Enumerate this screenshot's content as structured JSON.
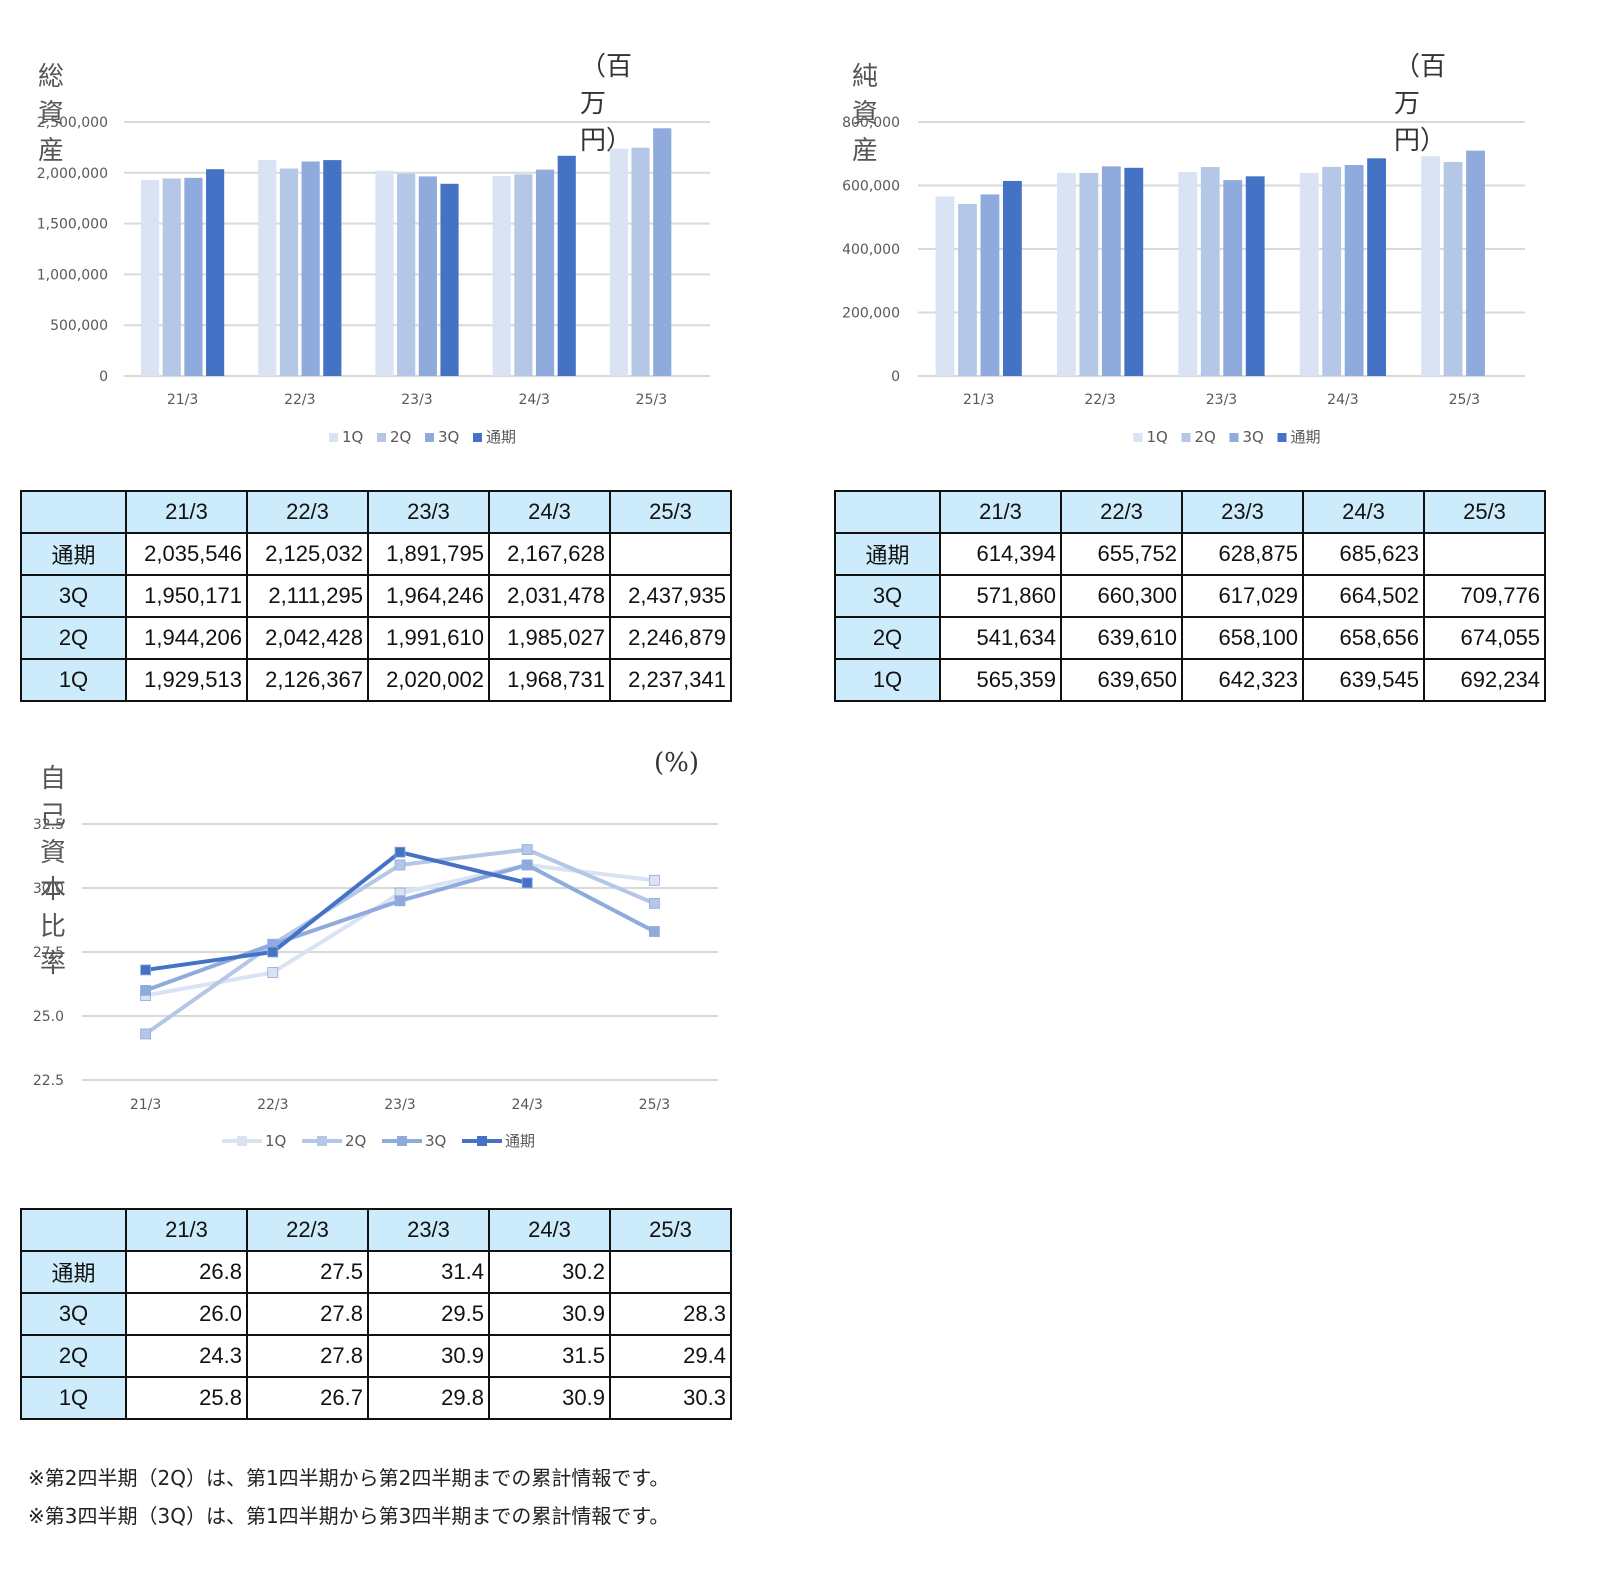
{
  "charts": [
    {
      "key": "total_assets",
      "title": "総資産",
      "unit": "（百万円）",
      "type": "bar",
      "categories": [
        "21/3",
        "22/3",
        "23/3",
        "24/3",
        "25/3"
      ],
      "yticks": [
        "2,500,000",
        "2,000,000",
        "1,500,000",
        "1,000,000",
        "500,000",
        "0"
      ],
      "ylim": [
        0,
        2500000
      ],
      "series": [
        {
          "name": "1Q",
          "color": "#dae3f3",
          "values": [
            1929513,
            2126367,
            2020002,
            1968731,
            2237341
          ]
        },
        {
          "name": "2Q",
          "color": "#b4c7e7",
          "values": [
            1944206,
            2042428,
            1991610,
            1985027,
            2246879
          ]
        },
        {
          "name": "3Q",
          "color": "#8faadc",
          "values": [
            1950171,
            2111295,
            1964246,
            2031478,
            2437935
          ]
        },
        {
          "name": "通期",
          "color": "#4472c4",
          "values": [
            2035546,
            2125032,
            1891795,
            2167628,
            null
          ]
        }
      ]
    },
    {
      "key": "net_assets",
      "title": "純資産",
      "unit": "（百万円）",
      "type": "bar",
      "categories": [
        "21/3",
        "22/3",
        "23/3",
        "24/3",
        "25/3"
      ],
      "yticks": [
        "800,000",
        "600,000",
        "400,000",
        "200,000",
        "0"
      ],
      "ylim": [
        0,
        800000
      ],
      "series": [
        {
          "name": "1Q",
          "color": "#dae3f3",
          "values": [
            565359,
            639650,
            642323,
            639545,
            692234
          ]
        },
        {
          "name": "2Q",
          "color": "#b4c7e7",
          "values": [
            541634,
            639610,
            658100,
            658656,
            674055
          ]
        },
        {
          "name": "3Q",
          "color": "#8faadc",
          "values": [
            571860,
            660300,
            617029,
            664502,
            709776
          ]
        },
        {
          "name": "通期",
          "color": "#4472c4",
          "values": [
            614394,
            655752,
            628875,
            685623,
            null
          ]
        }
      ]
    },
    {
      "key": "equity_ratio",
      "title": "自己資本比率",
      "unit": "(%)",
      "type": "line",
      "categories": [
        "21/3",
        "22/3",
        "23/3",
        "24/3",
        "25/3"
      ],
      "yticks": [
        "32.5",
        "30.0",
        "27.5",
        "25.0",
        "22.5"
      ],
      "ylim": [
        22.5,
        32.5
      ],
      "series": [
        {
          "name": "1Q",
          "color": "#dae3f3",
          "values": [
            25.8,
            26.7,
            29.8,
            30.9,
            30.3
          ]
        },
        {
          "name": "2Q",
          "color": "#b4c7e7",
          "values": [
            24.3,
            27.8,
            30.9,
            31.5,
            29.4
          ]
        },
        {
          "name": "3Q",
          "color": "#8faadc",
          "values": [
            26.0,
            27.8,
            29.5,
            30.9,
            28.3
          ]
        },
        {
          "name": "通期",
          "color": "#4472c4",
          "values": [
            26.8,
            27.5,
            31.4,
            30.2,
            null
          ]
        }
      ]
    }
  ],
  "tables": [
    {
      "key": "total_assets",
      "headers": [
        "21/3",
        "22/3",
        "23/3",
        "24/3",
        "25/3"
      ],
      "rows": [
        {
          "label": "通期",
          "cells": [
            "2,035,546",
            "2,125,032",
            "1,891,795",
            "2,167,628",
            ""
          ]
        },
        {
          "label": "3Q",
          "cells": [
            "1,950,171",
            "2,111,295",
            "1,964,246",
            "2,031,478",
            "2,437,935"
          ]
        },
        {
          "label": "2Q",
          "cells": [
            "1,944,206",
            "2,042,428",
            "1,991,610",
            "1,985,027",
            "2,246,879"
          ]
        },
        {
          "label": "1Q",
          "cells": [
            "1,929,513",
            "2,126,367",
            "2,020,002",
            "1,968,731",
            "2,237,341"
          ]
        }
      ]
    },
    {
      "key": "net_assets",
      "headers": [
        "21/3",
        "22/3",
        "23/3",
        "24/3",
        "25/3"
      ],
      "rows": [
        {
          "label": "通期",
          "cells": [
            "614,394",
            "655,752",
            "628,875",
            "685,623",
            ""
          ]
        },
        {
          "label": "3Q",
          "cells": [
            "571,860",
            "660,300",
            "617,029",
            "664,502",
            "709,776"
          ]
        },
        {
          "label": "2Q",
          "cells": [
            "541,634",
            "639,610",
            "658,100",
            "658,656",
            "674,055"
          ]
        },
        {
          "label": "1Q",
          "cells": [
            "565,359",
            "639,650",
            "642,323",
            "639,545",
            "692,234"
          ]
        }
      ]
    },
    {
      "key": "equity_ratio",
      "headers": [
        "21/3",
        "22/3",
        "23/3",
        "24/3",
        "25/3"
      ],
      "rows": [
        {
          "label": "通期",
          "cells": [
            "26.8",
            "27.5",
            "31.4",
            "30.2",
            ""
          ]
        },
        {
          "label": "3Q",
          "cells": [
            "26.0",
            "27.8",
            "29.5",
            "30.9",
            "28.3"
          ]
        },
        {
          "label": "2Q",
          "cells": [
            "24.3",
            "27.8",
            "30.9",
            "31.5",
            "29.4"
          ]
        },
        {
          "label": "1Q",
          "cells": [
            "25.8",
            "26.7",
            "29.8",
            "30.9",
            "30.3"
          ]
        }
      ]
    }
  ],
  "notes": [
    "※第2四半期（2Q）は、第1四半期から第2四半期までの累計情報です。",
    "※第3四半期（3Q）は、第1四半期から第3四半期までの累計情報です。"
  ]
}
